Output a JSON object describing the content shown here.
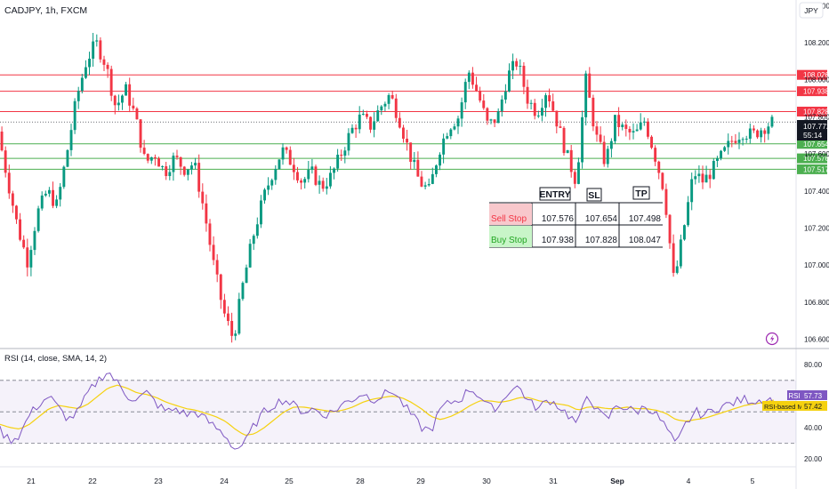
{
  "header": {
    "symbol_line": "CADJPY, 1h, FXCM"
  },
  "currency_badge": "JPY",
  "chart_data": {
    "type": "candlestick",
    "symbol": "CADJPY",
    "interval": "1h",
    "source": "FXCM",
    "currency": "JPY",
    "y_axis": {
      "ticks": [
        "108.400",
        "108.200",
        "108.000",
        "107.800",
        "107.600",
        "107.400",
        "107.200",
        "107.000",
        "106.800",
        "106.600"
      ],
      "ylim": [
        106.55,
        108.43
      ]
    },
    "x_axis": {
      "ticks": [
        "21",
        "22",
        "23",
        "24",
        "25",
        "28",
        "29",
        "30",
        "31",
        "Sep",
        "4",
        "5"
      ]
    },
    "horizontal_levels": [
      {
        "value": 108.026,
        "label": "108.026",
        "color": "#f23645"
      },
      {
        "value": 107.938,
        "label": "107.938",
        "color": "#f23645"
      },
      {
        "value": 107.828,
        "label": "107.828",
        "color": "#f23645"
      },
      {
        "value": 107.654,
        "label": "107.654",
        "color": "#4caf50"
      },
      {
        "value": 107.576,
        "label": "107.576",
        "color": "#4caf50"
      },
      {
        "value": 107.517,
        "label": "107.517",
        "color": "#4caf50"
      }
    ],
    "last_price": {
      "value": 107.772,
      "label": "107.772",
      "countdown": "55:14"
    },
    "candle_path": [
      107.72,
      107.45,
      107.2,
      107.02,
      107.28,
      107.4,
      107.32,
      107.6,
      107.9,
      108.1,
      108.2,
      108.08,
      107.85,
      107.95,
      107.8,
      107.55,
      107.6,
      107.5,
      107.58,
      107.52,
      107.55,
      107.3,
      107.0,
      106.75,
      106.6,
      106.9,
      107.15,
      107.35,
      107.5,
      107.62,
      107.55,
      107.45,
      107.5,
      107.42,
      107.48,
      107.6,
      107.72,
      107.8,
      107.75,
      107.85,
      107.92,
      107.78,
      107.6,
      107.45,
      107.4,
      107.62,
      107.75,
      107.8,
      108.05,
      107.92,
      107.75,
      107.8,
      108.02,
      108.1,
      107.9,
      107.82,
      107.95,
      107.78,
      107.6,
      107.45,
      108.0,
      107.7,
      107.55,
      107.78,
      107.72,
      107.7,
      107.78,
      107.6,
      107.4,
      106.9,
      107.2,
      107.5,
      107.45,
      107.52,
      107.6,
      107.68,
      107.72,
      107.7,
      107.74,
      107.77
    ],
    "trade_table": {
      "headers": [
        "",
        "ENTRY",
        "SL",
        "TP"
      ],
      "rows": [
        {
          "label": "Sell Stop",
          "entry": "107.576",
          "sl": "107.654",
          "tp": "107.498"
        },
        {
          "label": "Buy Stop",
          "entry": "107.938",
          "sl": "107.828",
          "tp": "108.047"
        }
      ]
    },
    "indicator": {
      "title": "RSI (14, close, SMA, 14, 2)",
      "y_ticks": [
        "80.00",
        "60.00",
        "40.00",
        "20.00"
      ],
      "ylim": [
        15,
        88
      ],
      "band": [
        30,
        70
      ],
      "middle": 50,
      "rsi_label": "RSI",
      "rsi_value": "57.73",
      "ma_label": "RSI-based MA",
      "ma_value": "57.42",
      "rsi_path": [
        38,
        32,
        35,
        48,
        55,
        60,
        52,
        45,
        50,
        62,
        70,
        76,
        68,
        60,
        58,
        62,
        55,
        50,
        52,
        48,
        50,
        45,
        40,
        35,
        26,
        30,
        42,
        50,
        55,
        58,
        54,
        50,
        52,
        48,
        50,
        55,
        58,
        62,
        58,
        60,
        64,
        56,
        48,
        40,
        38,
        52,
        56,
        58,
        65,
        60,
        52,
        54,
        64,
        66,
        56,
        52,
        58,
        54,
        48,
        42,
        62,
        50,
        45,
        55,
        52,
        50,
        54,
        48,
        40,
        28,
        42,
        50,
        48,
        52,
        54,
        56,
        58,
        57,
        58,
        57.7
      ],
      "ma_path": [
        42,
        40,
        39,
        42,
        47,
        52,
        54,
        53,
        52,
        55,
        60,
        65,
        67,
        65,
        62,
        61,
        59,
        56,
        54,
        52,
        51,
        49,
        47,
        44,
        39,
        35,
        36,
        40,
        45,
        50,
        53,
        53,
        52,
        51,
        50,
        51,
        53,
        56,
        58,
        59,
        60,
        59,
        56,
        52,
        47,
        45,
        47,
        50,
        54,
        57,
        57,
        56,
        57,
        59,
        59,
        57,
        56,
        55,
        54,
        51,
        53,
        53,
        52,
        52,
        53,
        52,
        52,
        51,
        49,
        45,
        44,
        45,
        46,
        48,
        50,
        52,
        54,
        55,
        56,
        57.4
      ]
    }
  }
}
